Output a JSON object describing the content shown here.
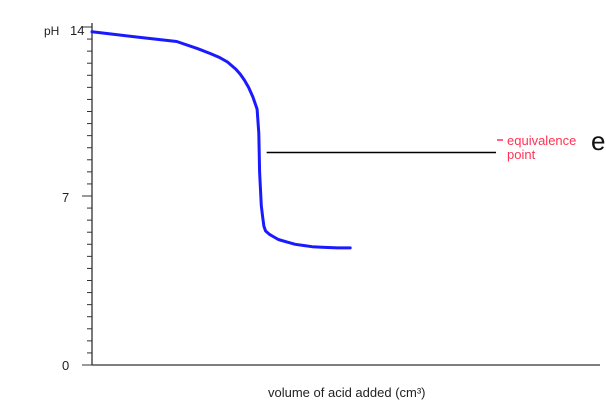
{
  "edge_fragment": "e",
  "colors": {
    "curve": "#1a1aff",
    "annotation": "#ff3355",
    "axis": "#333333",
    "leader": "#000000"
  },
  "chart_data": {
    "type": "line",
    "title": "",
    "ylabel": "pH",
    "xlabel": "volume of acid added (cm³)",
    "ylim": [
      0,
      14
    ],
    "y_ticks": [
      "0",
      "7",
      "14"
    ],
    "x_ticks": [],
    "grid": false,
    "series": [
      {
        "x": [
          0,
          5,
          10,
          15,
          20,
          25,
          28,
          30,
          32,
          33,
          34,
          35,
          36,
          37,
          38,
          39,
          39.4,
          39.6,
          40,
          40.3,
          40.6,
          41,
          42,
          43,
          44,
          46,
          48,
          50,
          52,
          55,
          58,
          61
        ],
        "y": [
          13.8,
          13.7,
          13.6,
          13.5,
          13.4,
          13.1,
          12.9,
          12.75,
          12.55,
          12.4,
          12.25,
          12.05,
          11.8,
          11.5,
          11.1,
          10.6,
          9.6,
          8.0,
          6.6,
          6.15,
          5.75,
          5.55,
          5.4,
          5.3,
          5.2,
          5.1,
          5.0,
          4.95,
          4.9,
          4.87,
          4.85,
          4.85
        ]
      }
    ],
    "annotations": [
      {
        "text_line1": "equivalence",
        "text_line2": "point",
        "x": 39.6,
        "y": 8.8
      }
    ]
  }
}
